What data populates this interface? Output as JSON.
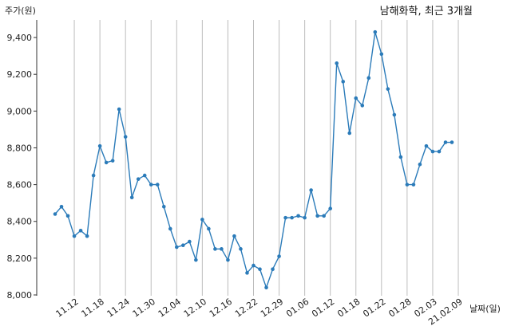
{
  "chart_data": {
    "type": "line",
    "title": "남해화학, 최근 3개월",
    "ylabel": "주가(원)",
    "xlabel": "날짜(일)",
    "ylim": [
      8000,
      9500
    ],
    "y_ticks": [
      8000,
      8200,
      8400,
      8600,
      8800,
      9000,
      9200,
      9400
    ],
    "y_tick_labels": [
      "8,000",
      "8,200",
      "8,400",
      "8,600",
      "8,800",
      "9,000",
      "9,200",
      "9,400"
    ],
    "x_tick_labels": [
      "11.12",
      "11.18",
      "11.24",
      "11.30",
      "12.04",
      "12.10",
      "12.16",
      "12.22",
      "12.29",
      "01.06",
      "01.12",
      "01.18",
      "01.22",
      "01.28",
      "02.03",
      "21.02.09"
    ],
    "x_tick_indices": [
      3,
      7,
      11,
      15,
      19,
      23,
      27,
      31,
      35,
      39,
      43,
      47,
      51,
      55,
      59,
      63
    ],
    "grid": "vertical",
    "line_color": "#2b7bb9",
    "series": [
      {
        "values": [
          8440,
          8480,
          8430,
          8320,
          8350,
          8320,
          8650,
          8810,
          8720,
          8730,
          9010,
          8860,
          8530,
          8630,
          8650,
          8600,
          8600,
          8480,
          8360,
          8260,
          8270,
          8290,
          8190,
          8410,
          8360,
          8250,
          8250,
          8190,
          8320,
          8250,
          8120,
          8160,
          8140,
          8040,
          8140,
          8210,
          8420,
          8420,
          8430,
          8420,
          8570,
          8430,
          8430,
          8470,
          9260,
          9160,
          8880,
          9070,
          9030,
          9180,
          9430,
          9310,
          9120,
          8980,
          8750,
          8600,
          8600,
          8710,
          8810,
          8780,
          8780,
          8830,
          8830
        ]
      }
    ]
  }
}
